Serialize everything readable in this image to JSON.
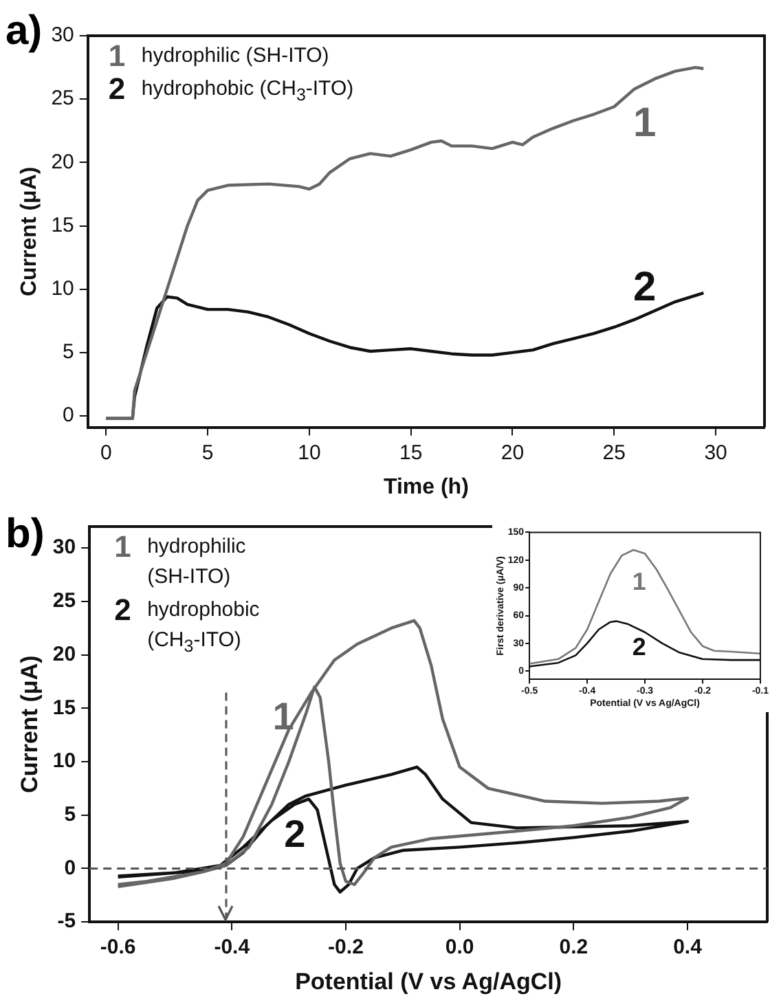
{
  "chart_data": [
    {
      "type": "line",
      "title": "a)",
      "xlabel": "Time (h)",
      "ylabel": "Current (μA)",
      "xlim": [
        -0.9,
        32.4
      ],
      "ylim": [
        -0.9,
        30
      ],
      "xticks": [
        0,
        5,
        10,
        15,
        20,
        25,
        30
      ],
      "yticks": [
        0,
        5,
        10,
        15,
        20,
        25,
        30
      ],
      "legend": "top left",
      "grid": false,
      "series": [
        {
          "name": "1 hydrophilic (SH-ITO)",
          "color": "#666666",
          "x": [
            0,
            1.3,
            1.4,
            2,
            3,
            4,
            4.5,
            5,
            6,
            8,
            9.5,
            10,
            10.5,
            11,
            12,
            13,
            14,
            15,
            16,
            16.5,
            17,
            18,
            19,
            20,
            20.5,
            21,
            22,
            23,
            24,
            25,
            26,
            27,
            28,
            29,
            29.4
          ],
          "values": [
            -0.2,
            -0.2,
            2,
            5,
            10,
            15,
            17,
            17.8,
            18.2,
            18.3,
            18.1,
            17.9,
            18.3,
            19.2,
            20.3,
            20.7,
            20.5,
            21,
            21.6,
            21.7,
            21.3,
            21.3,
            21.1,
            21.6,
            21.4,
            22,
            22.7,
            23.3,
            23.8,
            24.4,
            25.8,
            26.6,
            27.2,
            27.5,
            27.4
          ]
        },
        {
          "name": "2 hydrophobic (CH$_{3}$-ITO)",
          "color": "#111111",
          "x": [
            0,
            1.3,
            1.4,
            2,
            2.5,
            3,
            3.5,
            4,
            5,
            6,
            7,
            8,
            9,
            10,
            11,
            12,
            13,
            14,
            15,
            16,
            17,
            18,
            19,
            20,
            21,
            22,
            23,
            24,
            25,
            26,
            27,
            28,
            29.4
          ],
          "values": [
            -0.2,
            -0.2,
            1.5,
            5.5,
            8.5,
            9.4,
            9.3,
            8.8,
            8.4,
            8.4,
            8.2,
            7.8,
            7.2,
            6.5,
            5.9,
            5.4,
            5.1,
            5.2,
            5.3,
            5.1,
            4.9,
            4.8,
            4.8,
            5,
            5.2,
            5.7,
            6.1,
            6.5,
            7,
            7.6,
            8.3,
            9,
            9.7
          ]
        }
      ],
      "annotations": [
        "1",
        "2"
      ]
    },
    {
      "type": "line",
      "title": "b)",
      "xlabel": "Potential (V vs Ag/AgCl)",
      "ylabel": "Current (μA)",
      "xlim": [
        -0.65,
        0.54
      ],
      "ylim": [
        -5,
        32
      ],
      "xticks": [
        -0.6,
        -0.4,
        -0.2,
        {
          "value": 0,
          "label": "0.0"
        },
        0.2,
        0.4
      ],
      "yticks": [
        -5,
        0,
        5,
        10,
        15,
        20,
        25,
        30
      ],
      "legend": "top left",
      "grid": false,
      "series": [
        {
          "name": "1 hydrophilic (SH-ITO)",
          "color": "#666666",
          "x": [
            -0.6,
            -0.5,
            -0.45,
            -0.41,
            -0.37,
            -0.33,
            -0.3,
            -0.27,
            -0.255,
            -0.245,
            -0.23,
            -0.22,
            -0.21,
            -0.2,
            -0.185,
            -0.17,
            -0.15,
            -0.12,
            -0.05,
            0.1,
            0.2,
            0.3,
            0.37,
            0.4,
            0.35,
            0.25,
            0.15,
            0.05,
            0,
            -0.03,
            -0.05,
            -0.07,
            -0.08,
            -0.12,
            -0.18,
            -0.22,
            -0.26,
            -0.3,
            -0.34,
            -0.38,
            -0.41,
            -0.45,
            -0.55,
            -0.6
          ],
          "values": [
            -1.7,
            -0.9,
            -0.3,
            0.3,
            2,
            6,
            10,
            14.5,
            17,
            16,
            10,
            5,
            0.5,
            -1.2,
            -1.5,
            -0.5,
            1,
            2,
            2.8,
            3.5,
            4,
            4.8,
            5.7,
            6.6,
            6.3,
            6.1,
            6.3,
            7.5,
            9.5,
            14,
            19,
            22.5,
            23.2,
            22.5,
            21,
            19.5,
            16.5,
            13,
            8,
            3,
            0.5,
            -0.3,
            -1.2,
            -1.5
          ]
        },
        {
          "name": "2 hydrophobic (CH$_{3}$-ITO)",
          "color": "#111111",
          "x": [
            -0.6,
            -0.5,
            -0.42,
            -0.38,
            -0.33,
            -0.29,
            -0.265,
            -0.25,
            -0.235,
            -0.22,
            -0.21,
            -0.195,
            -0.18,
            -0.15,
            -0.1,
            0,
            0.1,
            0.2,
            0.3,
            0.4,
            0.3,
            0.2,
            0.1,
            0.02,
            -0.03,
            -0.06,
            -0.075,
            -0.12,
            -0.2,
            -0.27,
            -0.3,
            -0.34,
            -0.38,
            -0.41,
            -0.45,
            -0.55,
            -0.6
          ],
          "values": [
            -0.7,
            -0.4,
            0.3,
            2,
            4.5,
            6,
            6.5,
            5.5,
            2,
            -1.5,
            -2.2,
            -1.5,
            0,
            1,
            1.7,
            2,
            2.4,
            2.9,
            3.5,
            4.4,
            4,
            3.9,
            3.8,
            4.3,
            6.5,
            8.8,
            9.5,
            8.8,
            7.8,
            6.8,
            6,
            4,
            1.5,
            0.3,
            -0.2,
            -0.6,
            -0.8
          ]
        }
      ],
      "ref_lines": [
        {
          "axis": "y",
          "value": 0,
          "line_style": "dashed",
          "color": "#555555"
        },
        {
          "axis": "x",
          "value": -0.41,
          "line_style": "dashed",
          "color": "#555555"
        }
      ],
      "annotations": [
        "1",
        "2"
      ]
    },
    {
      "type": "line",
      "xlabel": "Potential (V vs Ag/AgCl)",
      "ylabel": "First derivative (μA/V)",
      "xlim": [
        -0.5,
        -0.1
      ],
      "ylim": [
        -9,
        150
      ],
      "xticks": [
        -0.5,
        -0.4,
        -0.3,
        -0.2,
        -0.1
      ],
      "yticks": [
        0,
        30,
        60,
        90,
        120,
        150
      ],
      "grid": false,
      "series": [
        {
          "color": "#777777",
          "x": [
            -0.5,
            -0.45,
            -0.42,
            -0.4,
            -0.38,
            -0.36,
            -0.34,
            -0.32,
            -0.3,
            -0.28,
            -0.26,
            -0.24,
            -0.22,
            -0.2,
            -0.18,
            -0.15,
            -0.1
          ],
          "values": [
            8,
            13,
            25,
            45,
            75,
            105,
            125,
            131,
            127,
            110,
            88,
            65,
            42,
            27,
            22,
            21,
            19
          ]
        },
        {
          "color": "#111111",
          "x": [
            -0.5,
            -0.45,
            -0.42,
            -0.4,
            -0.38,
            -0.36,
            -0.35,
            -0.33,
            -0.3,
            -0.27,
            -0.24,
            -0.2,
            -0.15,
            -0.1
          ],
          "values": [
            5,
            9,
            17,
            30,
            45,
            53,
            54,
            51,
            42,
            30,
            20,
            13,
            12,
            12
          ]
        }
      ],
      "annotations": [
        "1",
        "2"
      ]
    }
  ]
}
